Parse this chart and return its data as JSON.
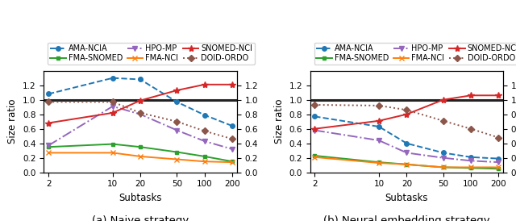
{
  "x_ticks": [
    2,
    10,
    20,
    50,
    100,
    200
  ],
  "x_labels": [
    "2",
    "10",
    "20",
    "50",
    "100",
    "200"
  ],
  "naive": {
    "AMA-NCIA": [
      1.08,
      1.3,
      1.28,
      0.97,
      0.79,
      0.64
    ],
    "FMA-NCI": [
      0.27,
      0.27,
      0.22,
      0.18,
      0.15,
      0.14
    ],
    "FMA-SNOMED": [
      0.35,
      0.39,
      0.35,
      0.28,
      0.22,
      0.15
    ],
    "SNOMED-NCI": [
      0.68,
      0.82,
      0.99,
      1.13,
      1.21,
      1.21
    ],
    "HPO-MP": [
      0.37,
      0.91,
      0.8,
      0.58,
      0.43,
      0.32
    ],
    "DOID-ORDO": [
      0.97,
      0.97,
      0.82,
      0.7,
      0.57,
      0.46
    ]
  },
  "neural": {
    "AMA-NCIA": [
      0.77,
      0.63,
      0.4,
      0.27,
      0.21,
      0.19
    ],
    "FMA-NCI": [
      0.21,
      0.13,
      0.11,
      0.07,
      0.07,
      0.07
    ],
    "FMA-SNOMED": [
      0.23,
      0.14,
      0.11,
      0.07,
      0.06,
      0.05
    ],
    "SNOMED-NCI": [
      0.6,
      0.71,
      0.8,
      1.0,
      1.06,
      1.06
    ],
    "HPO-MP": [
      0.58,
      0.44,
      0.27,
      0.2,
      0.16,
      0.14
    ],
    "DOID-ORDO": [
      0.93,
      0.92,
      0.86,
      0.71,
      0.6,
      0.48
    ]
  },
  "series_styles": {
    "AMA-NCIA": {
      "color": "#1f77b4",
      "linestyle": "--",
      "marker": "o",
      "markersize": 4
    },
    "FMA-NCI": {
      "color": "#ff7f0e",
      "linestyle": "-",
      "marker": "x",
      "markersize": 5
    },
    "FMA-SNOMED": {
      "color": "#2ca02c",
      "linestyle": "-",
      "marker": "s",
      "markersize": 3
    },
    "SNOMED-NCI": {
      "color": "#d62728",
      "linestyle": "-",
      "marker": "*",
      "markersize": 6
    },
    "HPO-MP": {
      "color": "#9467bd",
      "linestyle": "-.",
      "marker": "v",
      "markersize": 5
    },
    "DOID-ORDO": {
      "color": "#8c564b",
      "linestyle": ":",
      "marker": "D",
      "markersize": 4
    }
  },
  "legend_row1": [
    "AMA-NCIA",
    "FMA-SNOMED",
    "HPO-MP"
  ],
  "legend_row2": [
    "FMA-NCI",
    "SNOMED-NCI",
    "DOID-ORDO"
  ],
  "ylim": [
    0.0,
    1.4
  ],
  "yticks": [
    0.0,
    0.2,
    0.4,
    0.6,
    0.8,
    1.0,
    1.2
  ],
  "ylabel": "Size ratio",
  "xlabel": "Subtasks",
  "subtitle_a": "(a) Naive strategy",
  "subtitle_b": "(b) Neural embedding strategy",
  "hline_y": 1.0,
  "hline_color": "#222222",
  "hline_lw": 2.2
}
